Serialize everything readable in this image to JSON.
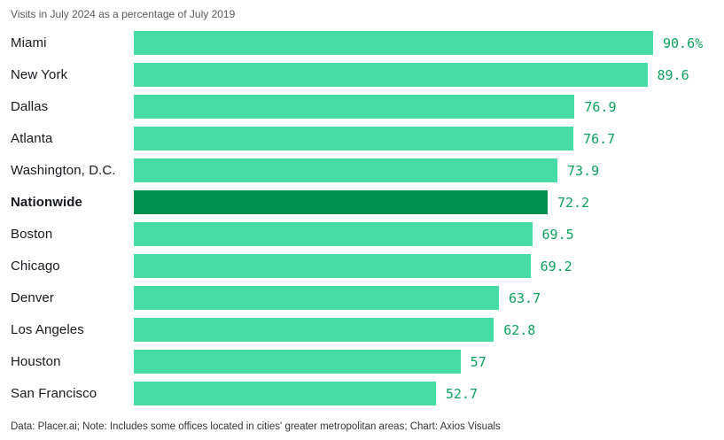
{
  "chart": {
    "subtitle": "Visits in July 2024 as a percentage of July 2019",
    "footer": "Data: Placer.ai; Note: Includes some offices located in cities' greater metropolitan areas; Chart: Axios Visuals"
  },
  "colors": {
    "bar": "#47dca3",
    "bar_highlight": "#009150",
    "value_text": "#0da05c",
    "label_text": "#15181e",
    "subtitle_text": "#5a5a60",
    "footer_text": "#333333"
  },
  "chart_data": {
    "type": "bar",
    "orientation": "horizontal",
    "title": "",
    "xlabel": "",
    "ylabel": "",
    "grid": false,
    "legend": false,
    "xlim": [
      0,
      90.6
    ],
    "categories": [
      "Miami",
      "New York",
      "Dallas",
      "Atlanta",
      "Washington, D.C.",
      "Nationwide",
      "Boston",
      "Chicago",
      "Denver",
      "Los Angeles",
      "Houston",
      "San Francisco"
    ],
    "values": [
      90.6,
      89.6,
      76.9,
      76.7,
      73.9,
      72.2,
      69.5,
      69.2,
      63.7,
      62.8,
      57,
      52.7
    ],
    "value_labels": [
      "90.6%",
      "89.6",
      "76.9",
      "76.7",
      "73.9",
      "72.2",
      "69.5",
      "69.2",
      "63.7",
      "62.8",
      "57",
      "52.7"
    ],
    "highlight_category": "Nationwide"
  }
}
